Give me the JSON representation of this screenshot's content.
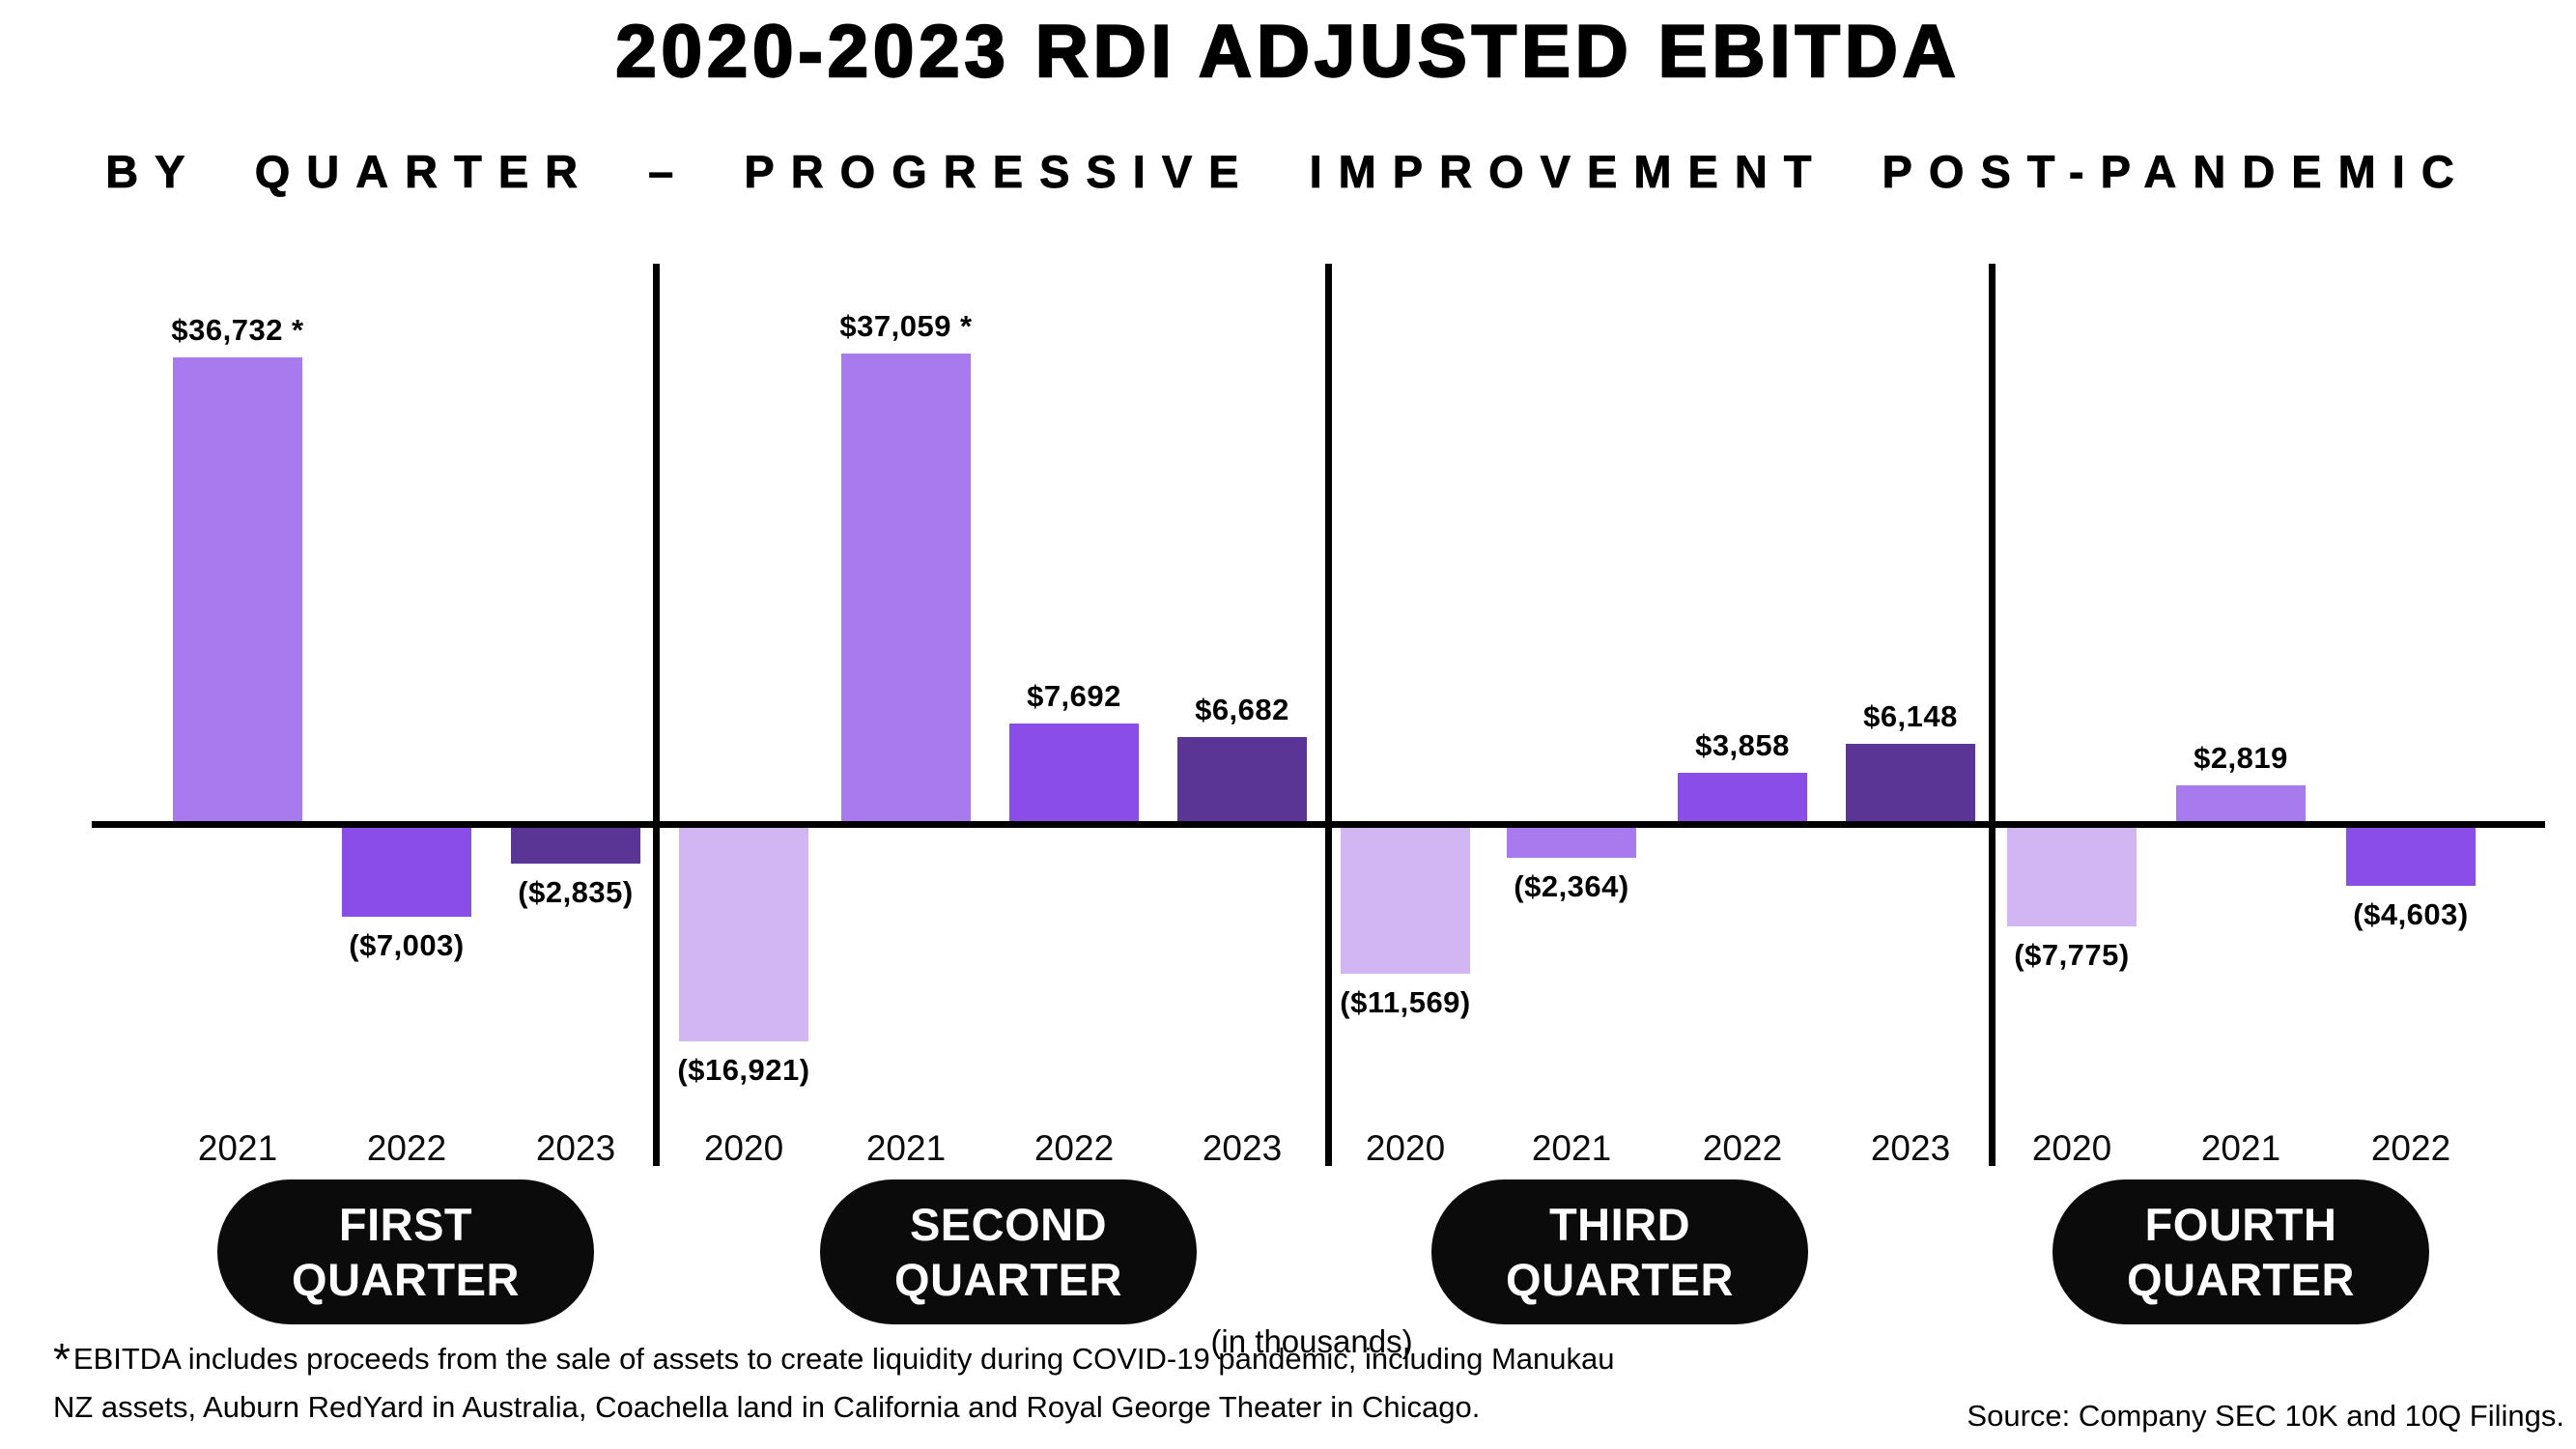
{
  "page": {
    "title": "2020-2023 RDI ADJUSTED EBITDA",
    "subtitle": "BY QUARTER – PROGRESSIVE IMPROVEMENT POST-PANDEMIC",
    "units_note": "(in thousands)",
    "footnote": {
      "marker": "*",
      "line1": "EBITDA includes proceeds from the sale of assets to create liquidity during COVID-19 pandemic, including Manukau",
      "line2": "NZ assets, Auburn RedYard in Australia, Coachella land in California and Royal George Theater in Chicago."
    },
    "source": "Source: Company SEC 10K and 10Q Filings."
  },
  "colors": {
    "year_2020": "#D2B6F4",
    "year_2021": "#A77BEE",
    "year_2022": "#8B4DE8",
    "year_2023": "#5A3596",
    "axis": "#000000",
    "pill_bg": "#0B0B0B",
    "pill_text": "#FFFFFF"
  },
  "chart_data": {
    "type": "bar",
    "title": "2020-2023 RDI Adjusted EBITDA",
    "subtitle": "By Quarter – Progressive Improvement Post-Pandemic",
    "value_unit": "USD thousands",
    "zero_baseline": true,
    "grid": false,
    "legend_position": "none",
    "y_implied_range": [
      -17000,
      38000
    ],
    "groups": [
      {
        "name": "FIRST QUARTER",
        "pill": [
          "FIRST",
          "QUARTER"
        ],
        "bars": [
          {
            "year": "2021",
            "value": 36732,
            "label": "$36,732 *"
          },
          {
            "year": "2022",
            "value": -7003,
            "label": "($7,003)"
          },
          {
            "year": "2023",
            "value": -2835,
            "label": "($2,835)"
          }
        ]
      },
      {
        "name": "SECOND QUARTER",
        "pill": [
          "SECOND",
          "QUARTER"
        ],
        "bars": [
          {
            "year": "2020",
            "value": -16921,
            "label": "($16,921)"
          },
          {
            "year": "2021",
            "value": 37059,
            "label": "$37,059 *"
          },
          {
            "year": "2022",
            "value": 7692,
            "label": "$7,692"
          },
          {
            "year": "2023",
            "value": 6682,
            "label": "$6,682"
          }
        ]
      },
      {
        "name": "THIRD QUARTER",
        "pill": [
          "THIRD",
          "QUARTER"
        ],
        "bars": [
          {
            "year": "2020",
            "value": -11569,
            "label": "($11,569)"
          },
          {
            "year": "2021",
            "value": -2364,
            "label": "($2,364)"
          },
          {
            "year": "2022",
            "value": 3858,
            "label": "$3,858"
          },
          {
            "year": "2023",
            "value": 6148,
            "label": "$6,148"
          }
        ]
      },
      {
        "name": "FOURTH QUARTER",
        "pill": [
          "FOURTH",
          "QUARTER"
        ],
        "bars": [
          {
            "year": "2020",
            "value": -7775,
            "label": "($7,775)"
          },
          {
            "year": "2021",
            "value": 2819,
            "label": "$2,819"
          },
          {
            "year": "2022",
            "value": -4603,
            "label": "($4,603)"
          }
        ]
      }
    ]
  }
}
